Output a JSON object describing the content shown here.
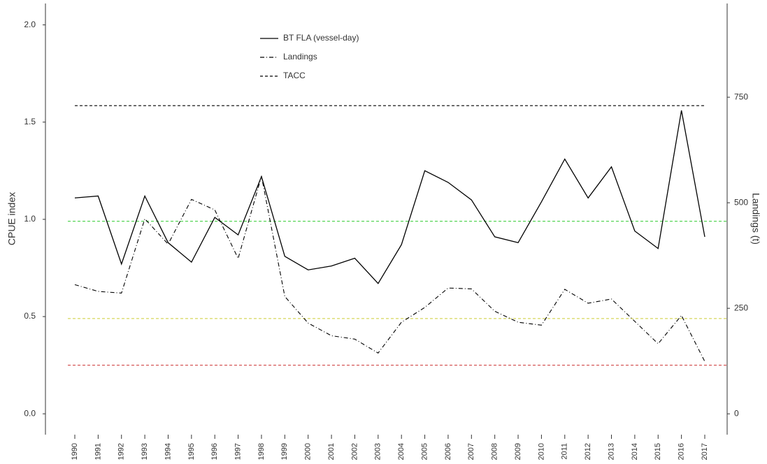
{
  "chart_data": {
    "type": "line",
    "y_label": "CPUE index",
    "y2_label": "Landings (t)",
    "categories": [
      "1990",
      "1991",
      "1992",
      "1993",
      "1994",
      "1995",
      "1996",
      "1997",
      "1998",
      "1999",
      "2000",
      "2001",
      "2002",
      "2003",
      "2004",
      "2005",
      "2006",
      "2007",
      "2008",
      "2009",
      "2010",
      "2011",
      "2012",
      "2013",
      "2014",
      "2015",
      "2016",
      "2017"
    ],
    "series": [
      {
        "name": "BT FLA (vessel-day)",
        "color": "#000000",
        "style": "solid",
        "values": [
          1.11,
          1.12,
          0.77,
          1.12,
          0.88,
          0.78,
          1.01,
          0.92,
          1.22,
          0.81,
          0.74,
          0.76,
          0.8,
          0.67,
          0.87,
          1.25,
          1.19,
          1.1,
          0.91,
          0.88,
          1.09,
          1.31,
          1.11,
          1.27,
          0.94,
          0.85,
          1.56,
          0.91
        ]
      },
      {
        "name": "Landings",
        "color": "#000000",
        "style": "dashdot",
        "axis": "y2",
        "values": [
          306,
          290,
          286,
          462,
          402,
          508,
          483,
          368,
          563,
          278,
          215,
          185,
          177,
          144,
          217,
          252,
          298,
          296,
          243,
          217,
          210,
          295,
          262,
          272,
          219,
          166,
          233,
          124
        ]
      },
      {
        "name": "TACC",
        "color": "#000000",
        "style": "dashed",
        "axis": "y2",
        "values": [
          730,
          730,
          730,
          730,
          730,
          730,
          730,
          730,
          730,
          730,
          730,
          730,
          730,
          730,
          730,
          730,
          730,
          730,
          730,
          730,
          730,
          730,
          730,
          730,
          730,
          730,
          730,
          730
        ]
      }
    ],
    "reference_lines": [
      {
        "value": 0.99,
        "color": "#33cc33"
      },
      {
        "value": 0.49,
        "color": "#cccc33"
      },
      {
        "value": 0.25,
        "color": "#cc3333"
      }
    ],
    "ylim": [
      -0.1,
      2.11
    ],
    "yticks": [
      {
        "value": 0,
        "label": "0.0"
      },
      0.5,
      {
        "value": 1,
        "label": "1.0"
      },
      1.5,
      {
        "value": 2,
        "label": "2.0"
      }
    ],
    "y2lim": [
      -46,
      972
    ],
    "y2ticks": [
      0,
      250,
      500,
      750
    ]
  }
}
